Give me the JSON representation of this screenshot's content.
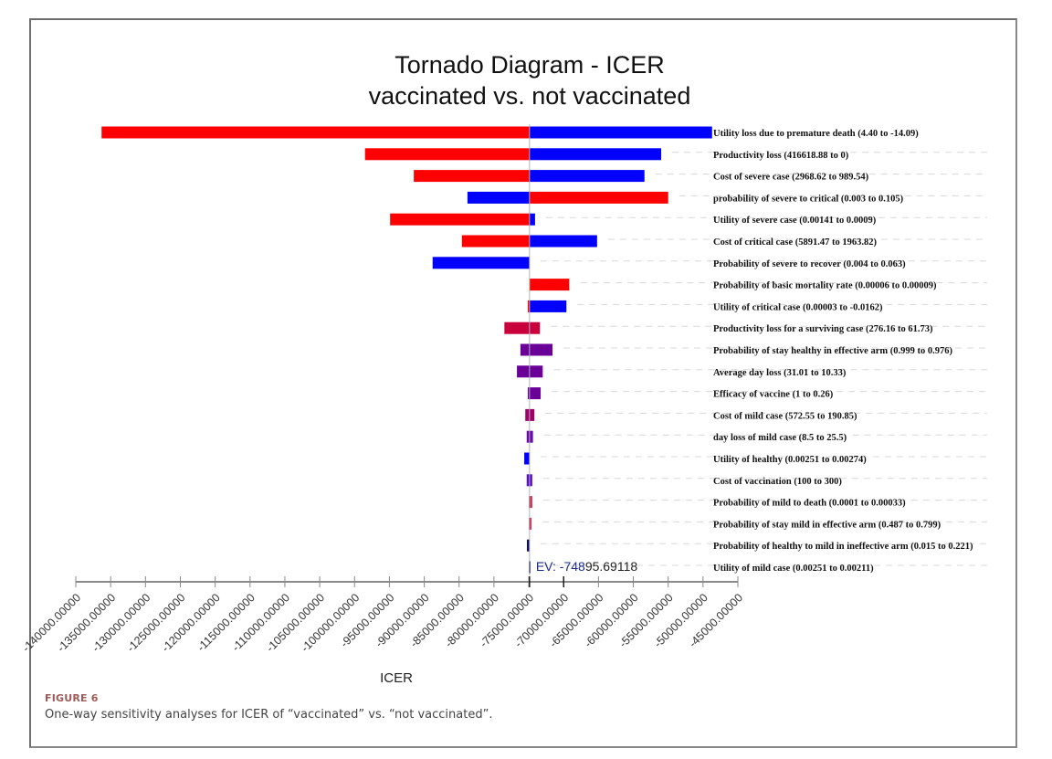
{
  "figure": {
    "number_label": "FIGURE 6",
    "caption": "One-way sensitivity analyses for ICER of “vaccinated” vs. “not vaccinated”."
  },
  "chart_data": {
    "type": "bar",
    "subtype": "tornado",
    "title": [
      "Tornado Diagram - ICER",
      "vaccinated vs. not vaccinated"
    ],
    "xlabel": "ICER",
    "ylabel": "",
    "xlim": [
      -140000,
      -45000
    ],
    "x_ticks": [
      -140000,
      -135000,
      -130000,
      -125000,
      -120000,
      -115000,
      -110000,
      -105000,
      -100000,
      -95000,
      -90000,
      -85000,
      -80000,
      -75000,
      -70000,
      -65000,
      -60000,
      -55000,
      -50000,
      -45000
    ],
    "x_tick_labels": [
      "-140000.00000",
      "-135000.00000",
      "-130000.00000",
      "-125000.00000",
      "-120000.00000",
      "-115000.00000",
      "-110000.00000",
      "-105000.00000",
      "-100000.00000",
      "-95000.00000",
      "-90000.00000",
      "-85000.00000",
      "-80000.00000",
      "-75000.00000",
      "-70000.00000",
      "-65000.00000",
      "-60000.00000",
      "-55000.00000",
      "-50000.00000",
      "-45000.00000"
    ],
    "expected_value": -74895.69118,
    "ev_label": "EV: -74895.69118",
    "grid": false,
    "legend": "none",
    "bars": [
      {
        "label": "Utility loss due to premature death (4.40 to -14.09)",
        "left": -136300,
        "right": -48700,
        "left_color": "#ff0000",
        "right_color": "#0000ff"
      },
      {
        "label": "Productivity loss (416618.88 to 0)",
        "left": -98500,
        "right": -56000,
        "left_color": "#ff0000",
        "right_color": "#0000ff"
      },
      {
        "label": "Cost of severe case (2968.62 to 989.54)",
        "left": -91500,
        "right": -58400,
        "left_color": "#ff0000",
        "right_color": "#0000ff"
      },
      {
        "label": "probability of severe to critical (0.003 to 0.105)",
        "left": -83800,
        "right": -55000,
        "left_color": "#0000ff",
        "right_color": "#ff0000"
      },
      {
        "label": "Utility of severe case (0.00141 to 0.0009)",
        "left": -94900,
        "right": -74100,
        "left_color": "#ff0000",
        "right_color": "#0000ff"
      },
      {
        "label": "Cost of critical case (5891.47 to 1963.82)",
        "left": -84600,
        "right": -65200,
        "left_color": "#ff0000",
        "right_color": "#0000ff"
      },
      {
        "label": "Probability of severe to recover (0.004 to 0.063)",
        "left": -88800,
        "right": -74896,
        "left_color": "#0000ff",
        "right_color": "#0000ff"
      },
      {
        "label": "Probability of basic mortality rate (0.00006 to 0.00009)",
        "left": -74896,
        "right": -69200,
        "left_color": "#ff0000",
        "right_color": "#ff0000"
      },
      {
        "label": "Utility of critical case (0.00003 to -0.0162)",
        "left": -75150,
        "right": -69600,
        "left_color": "#ff0000",
        "right_color": "#0000ff"
      },
      {
        "label": "Productivity loss for a surviving case (276.16 to 61.73)",
        "left": -78500,
        "right": -73400,
        "left_color": "#c8003c",
        "right_color": "#c8003c"
      },
      {
        "label": "Probability of stay healthy in effective arm (0.999 to 0.976)",
        "left": -76200,
        "right": -71600,
        "left_color": "#6a0098",
        "right_color": "#6a0098"
      },
      {
        "label": "Average day loss (31.01 to 10.33)",
        "left": -76700,
        "right": -73000,
        "left_color": "#6a0098",
        "right_color": "#6a0098"
      },
      {
        "label": "Efficacy of vaccine (1 to 0.26)",
        "left": -75150,
        "right": -73300,
        "left_color": "#6a0098",
        "right_color": "#6a0098"
      },
      {
        "label": "Cost of mild case (572.55 to 190.85)",
        "left": -75500,
        "right": -74200,
        "left_color": "#a0006a",
        "right_color": "#a0006a"
      },
      {
        "label": "day loss of mild case (8.5 to 25.5)",
        "left": -75300,
        "right": -74400,
        "left_color": "#6a0aa8",
        "right_color": "#6a0aa8"
      },
      {
        "label": "Utility of healthy (0.00251 to 0.00274)",
        "left": -75650,
        "right": -74896,
        "left_color": "#0000ff",
        "right_color": "#0000ff"
      },
      {
        "label": "Cost of vaccination (100 to 300)",
        "left": -75300,
        "right": -74500,
        "left_color": "#5a10c8",
        "right_color": "#5a10c8"
      },
      {
        "label": "Probability of mild to death (0.0001 to 0.00033)",
        "left": -75000,
        "right": -74500,
        "left_color": "#d03050",
        "right_color": "#d03050"
      },
      {
        "label": "Probability of stay mild in effective arm (0.487 to 0.799)",
        "left": -75000,
        "right": -74600,
        "left_color": "#d03050",
        "right_color": "#d03050"
      },
      {
        "label": "Probability of healthy to mild in ineffective arm (0.015 to 0.221)",
        "left": -75270,
        "right": -74896,
        "left_color": "#0a0a70",
        "right_color": "#0a0a70"
      },
      {
        "label": "Utility of mild case (0.00251 to 0.00211)",
        "left": -75000,
        "right": -74750,
        "left_color": "#2020a0",
        "right_color": "#2020a0"
      }
    ]
  }
}
